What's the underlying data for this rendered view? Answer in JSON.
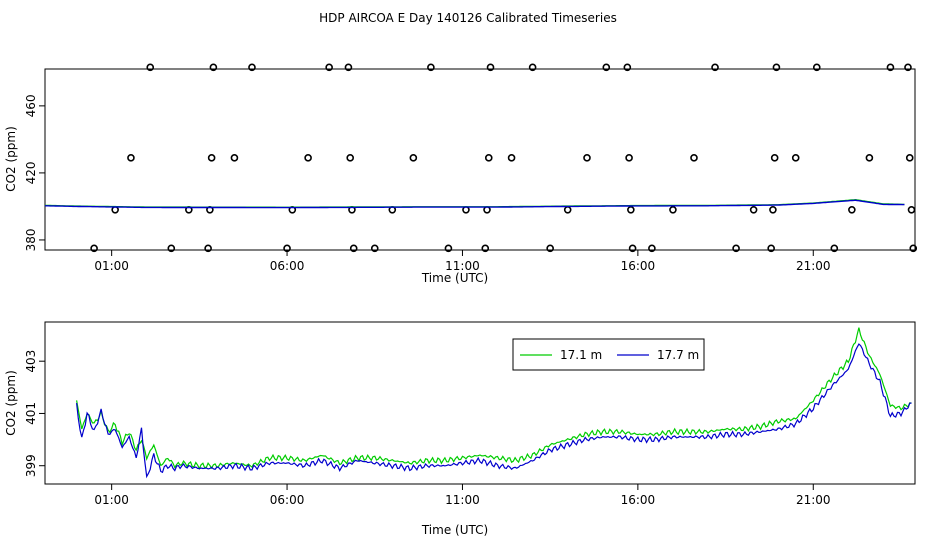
{
  "title": "HDP AIRCOA E  Day 140126  Calibrated Timeseries",
  "chart_data": [
    {
      "type": "scatter+line",
      "ylabel": "CO2 (ppm)",
      "xlabel": "Time (UTC)",
      "x_ticks": [
        "01:00",
        "06:00",
        "11:00",
        "16:00",
        "21:00"
      ],
      "x_tick_hours": [
        1,
        6,
        11,
        16,
        21
      ],
      "xlim": [
        -0.9,
        23.9
      ],
      "y_ticks": [
        380,
        420,
        460
      ],
      "ylim": [
        374,
        482
      ],
      "points": [
        [
          0.5,
          375
        ],
        [
          1.1,
          398
        ],
        [
          1.55,
          429
        ],
        [
          2.1,
          483
        ],
        [
          2.7,
          375
        ],
        [
          3.2,
          398
        ],
        [
          3.75,
          375
        ],
        [
          3.8,
          398
        ],
        [
          3.85,
          429
        ],
        [
          3.9,
          483
        ],
        [
          4.5,
          429
        ],
        [
          5.0,
          483
        ],
        [
          6.0,
          375
        ],
        [
          6.15,
          398
        ],
        [
          6.6,
          429
        ],
        [
          7.2,
          483
        ],
        [
          7.75,
          483
        ],
        [
          7.8,
          429
        ],
        [
          7.85,
          398
        ],
        [
          7.9,
          375
        ],
        [
          8.5,
          375
        ],
        [
          9.0,
          398
        ],
        [
          9.6,
          429
        ],
        [
          10.1,
          483
        ],
        [
          10.6,
          375
        ],
        [
          11.1,
          398
        ],
        [
          11.65,
          375
        ],
        [
          11.7,
          398
        ],
        [
          11.75,
          429
        ],
        [
          11.8,
          483
        ],
        [
          12.4,
          429
        ],
        [
          13.0,
          483
        ],
        [
          13.5,
          375
        ],
        [
          14.0,
          398
        ],
        [
          14.55,
          429
        ],
        [
          15.1,
          483
        ],
        [
          15.7,
          483
        ],
        [
          15.75,
          429
        ],
        [
          15.8,
          398
        ],
        [
          15.85,
          375
        ],
        [
          16.4,
          375
        ],
        [
          17.0,
          398
        ],
        [
          17.6,
          429
        ],
        [
          18.2,
          483
        ],
        [
          18.8,
          375
        ],
        [
          19.3,
          398
        ],
        [
          19.8,
          375
        ],
        [
          19.85,
          398
        ],
        [
          19.9,
          429
        ],
        [
          19.95,
          483
        ],
        [
          20.5,
          429
        ],
        [
          21.1,
          483
        ],
        [
          21.6,
          375
        ],
        [
          22.1,
          398
        ],
        [
          22.6,
          429
        ],
        [
          23.2,
          483
        ],
        [
          23.7,
          483
        ],
        [
          23.75,
          429
        ],
        [
          23.8,
          398
        ],
        [
          23.85,
          375
        ]
      ],
      "series": [
        {
          "color": "#00cc00",
          "values": [
            [
              -0.9,
              400.6
            ],
            [
              0,
              400.2
            ],
            [
              2,
              399.6
            ],
            [
              6,
              399.5
            ],
            [
              10,
              399.8
            ],
            [
              12,
              399.8
            ],
            [
              14,
              400.2
            ],
            [
              16,
              400.5
            ],
            [
              18,
              400.6
            ],
            [
              20,
              401
            ],
            [
              21,
              402
            ],
            [
              22.2,
              404
            ],
            [
              23,
              401.5
            ],
            [
              23.6,
              401.2
            ]
          ]
        },
        {
          "color": "#0000cc",
          "values": [
            [
              -0.9,
              400.4
            ],
            [
              0,
              400
            ],
            [
              2,
              399.4
            ],
            [
              6,
              399.3
            ],
            [
              10,
              399.6
            ],
            [
              12,
              399.6
            ],
            [
              14,
              400
            ],
            [
              16,
              400.3
            ],
            [
              18,
              400.4
            ],
            [
              20,
              400.8
            ],
            [
              21,
              401.8
            ],
            [
              22.2,
              403.7
            ],
            [
              23,
              401.2
            ],
            [
              23.6,
              401.1
            ]
          ]
        }
      ]
    },
    {
      "type": "line",
      "ylabel": "CO2 (ppm)",
      "xlabel": "Time (UTC)",
      "x_ticks": [
        "01:00",
        "06:00",
        "11:00",
        "16:00",
        "21:00"
      ],
      "x_tick_hours": [
        1,
        6,
        11,
        16,
        21
      ],
      "xlim": [
        -0.9,
        23.9
      ],
      "y_ticks": [
        399,
        401,
        403
      ],
      "ylim": [
        398.3,
        404.5
      ],
      "legend": "top-right",
      "series": [
        {
          "name": "17.1 m",
          "color": "#00cc00",
          "values": [
            [
              0,
              401.5
            ],
            [
              0.15,
              400.4
            ],
            [
              0.3,
              401
            ],
            [
              0.5,
              400.6
            ],
            [
              0.7,
              401
            ],
            [
              0.9,
              400.3
            ],
            [
              1.1,
              400.6
            ],
            [
              1.3,
              399.9
            ],
            [
              1.5,
              400.3
            ],
            [
              1.7,
              399.6
            ],
            [
              1.85,
              400.0
            ],
            [
              2.0,
              399.3
            ],
            [
              2.2,
              399.8
            ],
            [
              2.4,
              399.0
            ],
            [
              2.6,
              399.3
            ],
            [
              2.8,
              399.0
            ],
            [
              3.0,
              399.1
            ],
            [
              3.5,
              399.0
            ],
            [
              4.0,
              399.0
            ],
            [
              4.5,
              399.1
            ],
            [
              5.0,
              399.0
            ],
            [
              5.5,
              399.3
            ],
            [
              6.0,
              399.3
            ],
            [
              6.5,
              399.2
            ],
            [
              7.0,
              399.4
            ],
            [
              7.5,
              399.1
            ],
            [
              8.0,
              399.3
            ],
            [
              8.5,
              399.3
            ],
            [
              9.0,
              399.2
            ],
            [
              9.5,
              399.1
            ],
            [
              10.0,
              399.2
            ],
            [
              10.5,
              399.2
            ],
            [
              11.0,
              399.3
            ],
            [
              11.5,
              399.4
            ],
            [
              12.0,
              399.3
            ],
            [
              12.5,
              399.2
            ],
            [
              13.0,
              399.4
            ],
            [
              13.5,
              399.8
            ],
            [
              14.0,
              400.0
            ],
            [
              14.5,
              400.2
            ],
            [
              15.0,
              400.3
            ],
            [
              15.5,
              400.3
            ],
            [
              16.0,
              400.2
            ],
            [
              16.5,
              400.2
            ],
            [
              17.0,
              400.3
            ],
            [
              17.5,
              400.3
            ],
            [
              18.0,
              400.3
            ],
            [
              18.5,
              400.4
            ],
            [
              19.0,
              400.4
            ],
            [
              19.5,
              400.5
            ],
            [
              20.0,
              400.7
            ],
            [
              20.5,
              400.8
            ],
            [
              21.0,
              401.5
            ],
            [
              21.5,
              402.3
            ],
            [
              22.0,
              403.0
            ],
            [
              22.3,
              404.2
            ],
            [
              22.6,
              403.2
            ],
            [
              22.9,
              402.5
            ],
            [
              23.2,
              401.3
            ],
            [
              23.5,
              401.2
            ],
            [
              23.8,
              401.4
            ]
          ]
        },
        {
          "name": "17.7 m",
          "color": "#0000cc",
          "values": [
            [
              0,
              401.3
            ],
            [
              0.15,
              400.0
            ],
            [
              0.3,
              401.0
            ],
            [
              0.5,
              400.3
            ],
            [
              0.7,
              401.1
            ],
            [
              0.9,
              400.2
            ],
            [
              1.1,
              400.4
            ],
            [
              1.3,
              399.7
            ],
            [
              1.5,
              400.1
            ],
            [
              1.7,
              399.3
            ],
            [
              1.85,
              400.4
            ],
            [
              2.0,
              398.5
            ],
            [
              2.2,
              399.4
            ],
            [
              2.4,
              398.8
            ],
            [
              2.6,
              399.0
            ],
            [
              2.8,
              398.9
            ],
            [
              3.0,
              399.0
            ],
            [
              3.5,
              398.9
            ],
            [
              4.0,
              398.9
            ],
            [
              4.5,
              399.0
            ],
            [
              5.0,
              398.9
            ],
            [
              5.5,
              399.1
            ],
            [
              6.0,
              399.1
            ],
            [
              6.5,
              399.0
            ],
            [
              7.0,
              399.2
            ],
            [
              7.5,
              398.9
            ],
            [
              8.0,
              399.2
            ],
            [
              8.5,
              399.1
            ],
            [
              9.0,
              399.0
            ],
            [
              9.5,
              398.9
            ],
            [
              10.0,
              399.0
            ],
            [
              10.5,
              399.0
            ],
            [
              11.0,
              399.1
            ],
            [
              11.5,
              399.2
            ],
            [
              12.0,
              399.0
            ],
            [
              12.5,
              398.9
            ],
            [
              13.0,
              399.2
            ],
            [
              13.5,
              399.6
            ],
            [
              14.0,
              399.8
            ],
            [
              14.5,
              400.0
            ],
            [
              15.0,
              400.1
            ],
            [
              15.5,
              400.1
            ],
            [
              16.0,
              400.0
            ],
            [
              16.5,
              400.0
            ],
            [
              17.0,
              400.1
            ],
            [
              17.5,
              400.1
            ],
            [
              18.0,
              400.1
            ],
            [
              18.5,
              400.2
            ],
            [
              19.0,
              400.2
            ],
            [
              19.5,
              400.3
            ],
            [
              20.0,
              400.4
            ],
            [
              20.5,
              400.6
            ],
            [
              21.0,
              401.2
            ],
            [
              21.5,
              402.0
            ],
            [
              22.0,
              402.7
            ],
            [
              22.3,
              403.7
            ],
            [
              22.6,
              402.9
            ],
            [
              22.9,
              402.2
            ],
            [
              23.2,
              400.9
            ],
            [
              23.5,
              401.0
            ],
            [
              23.8,
              401.4
            ]
          ]
        }
      ]
    }
  ]
}
